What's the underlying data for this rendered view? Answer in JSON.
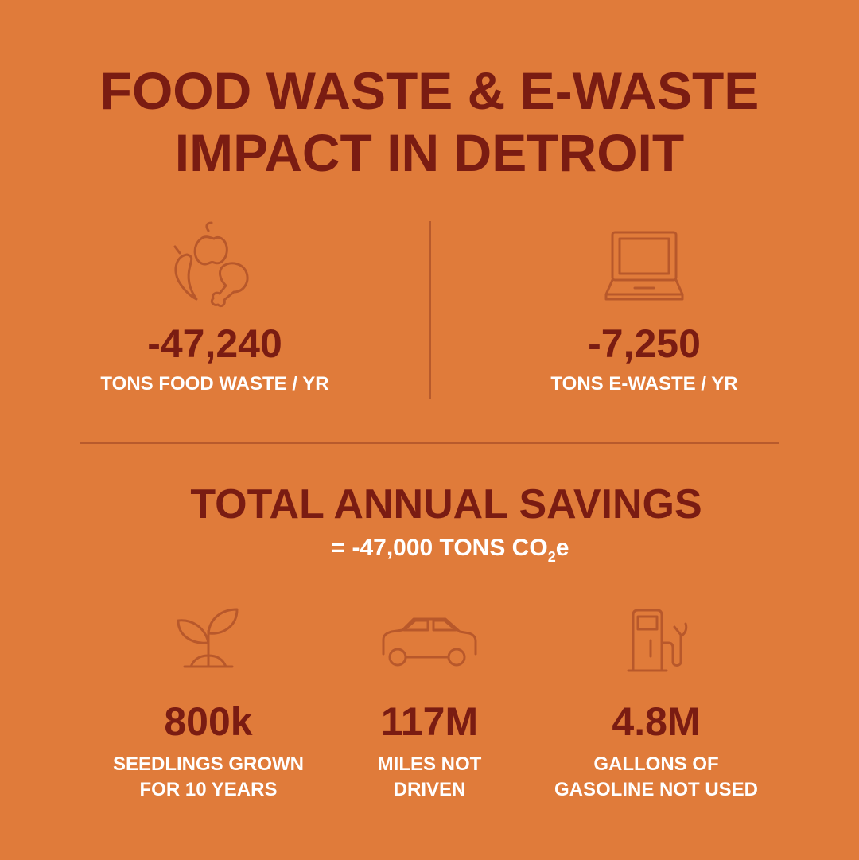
{
  "header": {
    "title_lines": [
      "FOOD WASTE & E-WASTE",
      "IMPACT IN DETROIT"
    ]
  },
  "waste": [
    {
      "value": "-47,240",
      "label": "TONS FOOD WASTE / YR"
    },
    {
      "value": "-7,250",
      "label": "TONS E-WASTE / YR"
    }
  ],
  "savings": {
    "title": "TOTAL ANNUAL SAVINGS",
    "subtitle_parts": [
      "= -47,000 TONS CO",
      "2",
      "e"
    ]
  },
  "equivalents": [
    {
      "value": "800k",
      "label_lines": [
        "SEEDLINGS GROWN",
        "FOR 10 YEARS"
      ]
    },
    {
      "value": "117M",
      "label_lines": [
        "MILES NOT",
        "DRIVEN"
      ]
    },
    {
      "value": "4.8M",
      "label_lines": [
        "GALLONS OF",
        "GASOLINE NOT USED"
      ]
    }
  ]
}
